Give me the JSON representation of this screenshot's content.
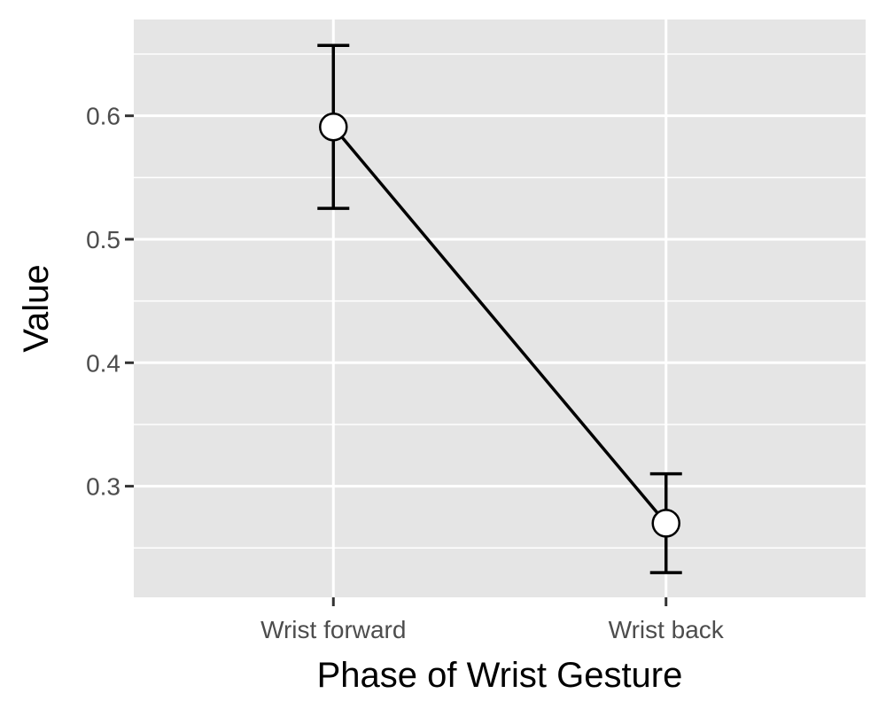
{
  "chart_data": {
    "type": "line",
    "title": "",
    "xlabel": "Phase of Wrist Gesture",
    "ylabel": "Value",
    "categories": [
      "Wrist forward",
      "Wrist back"
    ],
    "values": [
      0.591,
      0.27
    ],
    "error_low": [
      0.525,
      0.23
    ],
    "error_high": [
      0.657,
      0.31
    ],
    "ylim": [
      0.21,
      0.678
    ],
    "yticks": [
      0.3,
      0.4,
      0.5,
      0.6
    ],
    "ytick_labels": [
      "0.3",
      "0.4",
      "0.5",
      "0.6"
    ],
    "grid": true,
    "legend": "none"
  },
  "colors": {
    "panel": "#e5e5e5",
    "grid": "#ffffff",
    "line": "#000000",
    "marker_fill": "#ffffff"
  }
}
